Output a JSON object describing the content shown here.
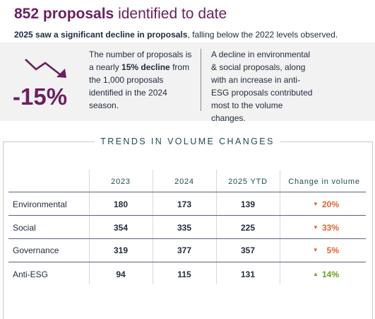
{
  "headline": {
    "bold": "852 proposals",
    "rest": " identified to date"
  },
  "subhead": {
    "bold": "2025 saw a significant decline in proposals",
    "rest": ", falling below the 2022 levels observed."
  },
  "highlight": {
    "percent": "-15%",
    "para1": {
      "pre": "The number of proposals is a nearly ",
      "bold": "15% decline",
      "post": " from the 1,000 proposals identified in the 2024 season."
    },
    "para2": "A decline in environmental & social proposals, along with an increase in anti-ESG proposals contributed most to the volume changes."
  },
  "table": {
    "title": "TRENDS IN VOLUME CHANGES",
    "columns": [
      "2023",
      "2024",
      "2025 YTD",
      "Change in volume"
    ],
    "rows": [
      {
        "label": "Environmental",
        "v2023": "180",
        "v2024": "173",
        "v2025": "139",
        "change": "20%",
        "direction": "down"
      },
      {
        "label": "Social",
        "v2023": "354",
        "v2024": "335",
        "v2025": "225",
        "change": "33%",
        "direction": "down"
      },
      {
        "label": "Governance",
        "v2023": "319",
        "v2024": "377",
        "v2025": "357",
        "change": "5%",
        "direction": "down"
      },
      {
        "label": "Anti-ESG",
        "v2023": "94",
        "v2024": "115",
        "v2025": "131",
        "change": "14%",
        "direction": "up"
      }
    ]
  },
  "colors": {
    "accent": "#6b1f5f",
    "decrease": "#e2652e",
    "increase": "#6a9d1f",
    "teal": "#1d4e4e"
  }
}
